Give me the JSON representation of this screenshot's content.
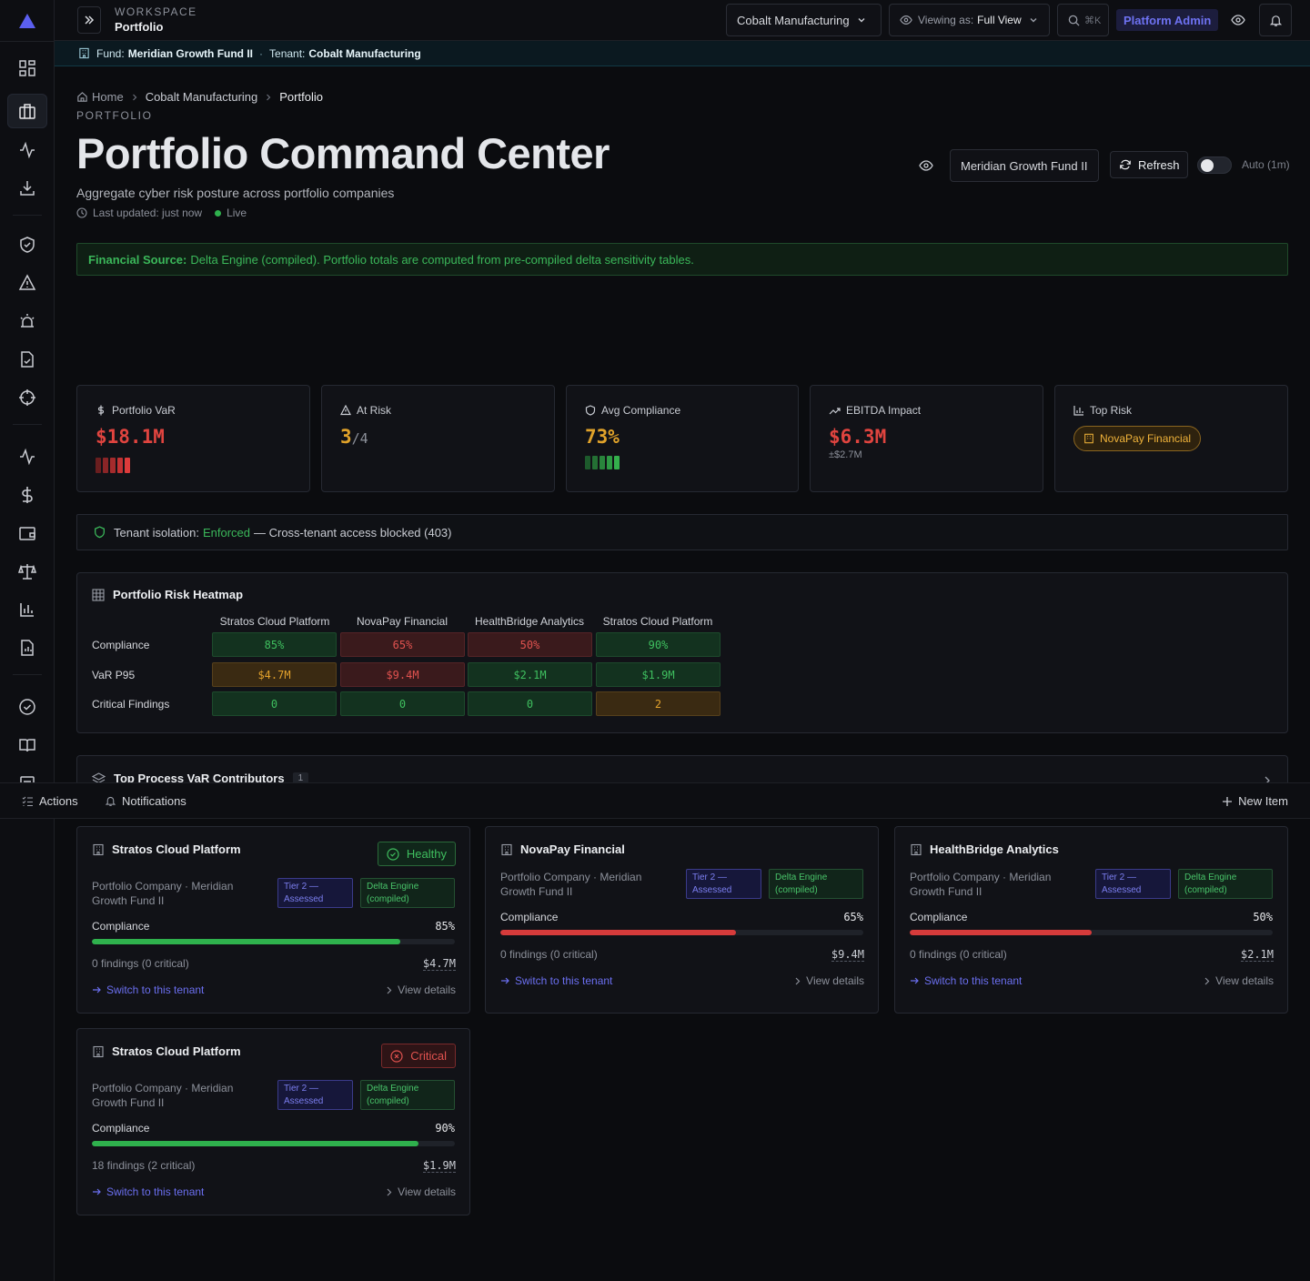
{
  "topbar": {
    "workspace_label": "WORKSPACE",
    "workspace_name": "Portfolio",
    "tenant_select": "Cobalt Manufacturing",
    "viewing_as_label": "Viewing as:",
    "viewing_as_value": "Full View",
    "search_shortcut": "⌘K",
    "platform_admin": "Platform Admin"
  },
  "fundbar": {
    "fund_label": "Fund:",
    "fund_name": "Meridian Growth Fund II",
    "separator": "·",
    "tenant_label": "Tenant:",
    "tenant_name": "Cobalt Manufacturing"
  },
  "breadcrumb": [
    "Home",
    "Cobalt Manufacturing",
    "Portfolio"
  ],
  "header": {
    "eyebrow": "PORTFOLIO",
    "title": "Portfolio Command Center",
    "subtitle": "Aggregate cyber risk posture across portfolio companies",
    "last_updated": "Last updated: just now",
    "live": "Live",
    "fund_select": "Meridian Growth Fund II",
    "refresh": "Refresh",
    "auto": "Auto (1m)"
  },
  "financial_source": {
    "label": "Financial Source:",
    "text": "Delta Engine (compiled). Portfolio totals are computed from pre-compiled delta sensitivity tables."
  },
  "kpis": [
    {
      "label": "Portfolio VaR",
      "value": "$18.1M",
      "color": "#e0443f"
    },
    {
      "label": "At Risk",
      "value": "3",
      "total": "/4",
      "color": "#e0a22a"
    },
    {
      "label": "Avg Compliance",
      "value": "73%",
      "color": "#e0a22a"
    },
    {
      "label": "EBITDA Impact",
      "value": "$6.3M",
      "sub": "±$2.7M",
      "color": "#e0443f"
    },
    {
      "label": "Top Risk",
      "badge": "NovaPay Financial"
    }
  ],
  "isolation": {
    "label": "Tenant isolation:",
    "status": "Enforced",
    "text": "— Cross-tenant access blocked (403)"
  },
  "heatmap": {
    "title": "Portfolio Risk Heatmap",
    "columns": [
      "Stratos Cloud Platform",
      "NovaPay Financial",
      "HealthBridge Analytics",
      "Stratos Cloud Platform"
    ],
    "rows": [
      {
        "label": "Compliance",
        "cells": [
          {
            "v": "85%",
            "c": "g"
          },
          {
            "v": "65%",
            "c": "r"
          },
          {
            "v": "50%",
            "c": "r"
          },
          {
            "v": "90%",
            "c": "g"
          }
        ]
      },
      {
        "label": "VaR P95",
        "cells": [
          {
            "v": "$4.7M",
            "c": "a"
          },
          {
            "v": "$9.4M",
            "c": "r"
          },
          {
            "v": "$2.1M",
            "c": "g"
          },
          {
            "v": "$1.9M",
            "c": "g"
          }
        ]
      },
      {
        "label": "Critical Findings",
        "cells": [
          {
            "v": "0",
            "c": "g"
          },
          {
            "v": "0",
            "c": "g"
          },
          {
            "v": "0",
            "c": "g"
          },
          {
            "v": "2",
            "c": "a"
          }
        ]
      }
    ]
  },
  "contributors": {
    "title": "Top Process VaR Contributors",
    "count": "1"
  },
  "bottombar": {
    "actions": "Actions",
    "notifications": "Notifications",
    "new_item": "New Item"
  },
  "companies": [
    {
      "name": "Stratos Cloud Platform",
      "status": "Healthy",
      "status_kind": "ok",
      "sub": "Portfolio Company · Meridian Growth Fund II",
      "tier": "Tier 2 — Assessed",
      "delta": "Delta Engine (compiled)",
      "compliance_label": "Compliance",
      "compliance": "85%",
      "compliance_fraction": 0.85,
      "bar_color": "#2fb14d",
      "findings": "0 findings (0 critical)",
      "var": "$4.7M",
      "switch": "Switch to this tenant",
      "view": "View details"
    },
    {
      "name": "NovaPay Financial",
      "status": "",
      "status_kind": "none",
      "sub": "Portfolio Company · Meridian Growth Fund II",
      "tier": "Tier 2 — Assessed",
      "delta": "Delta Engine (compiled)",
      "compliance_label": "Compliance",
      "compliance": "65%",
      "compliance_fraction": 0.65,
      "bar_color": "#d63b3b",
      "findings": "0 findings (0 critical)",
      "var": "$9.4M",
      "switch": "Switch to this tenant",
      "view": "View details"
    },
    {
      "name": "HealthBridge Analytics",
      "status": "",
      "status_kind": "none",
      "sub": "Portfolio Company · Meridian Growth Fund II",
      "tier": "Tier 2 — Assessed",
      "delta": "Delta Engine (compiled)",
      "compliance_label": "Compliance",
      "compliance": "50%",
      "compliance_fraction": 0.5,
      "bar_color": "#d63b3b",
      "findings": "0 findings (0 critical)",
      "var": "$2.1M",
      "switch": "Switch to this tenant",
      "view": "View details"
    },
    {
      "name": "Stratos Cloud Platform",
      "status": "Critical",
      "status_kind": "crit",
      "sub": "Portfolio Company · Meridian Growth Fund II",
      "tier": "Tier 2 — Assessed",
      "delta": "Delta Engine (compiled)",
      "compliance_label": "Compliance",
      "compliance": "90%",
      "compliance_fraction": 0.9,
      "bar_color": "#2fb14d",
      "findings": "18 findings (2 critical)",
      "var": "$1.9M",
      "switch": "Switch to this tenant",
      "view": "View details"
    }
  ]
}
